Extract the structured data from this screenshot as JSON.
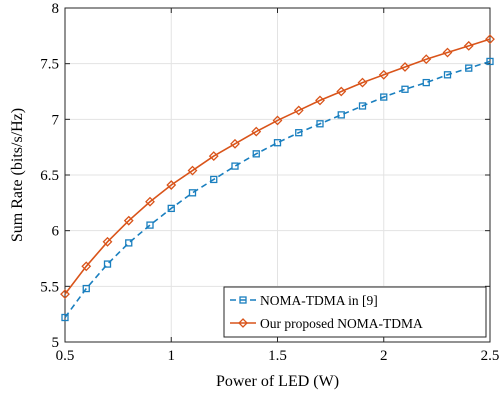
{
  "chart_data": {
    "type": "line",
    "xlabel": "Power of LED (W)",
    "ylabel": "Sum Rate (bits/s/Hz)",
    "xlim": [
      0.5,
      2.5
    ],
    "ylim": [
      5,
      8
    ],
    "x_ticks": [
      "0.5",
      "1",
      "1.5",
      "2",
      "2.5"
    ],
    "x_tick_values": [
      0.5,
      1,
      1.5,
      2,
      2.5
    ],
    "y_ticks": [
      "5",
      "5.5",
      "6",
      "6.5",
      "7",
      "7.5",
      "8"
    ],
    "y_tick_values": [
      5,
      5.5,
      6,
      6.5,
      7,
      7.5,
      8
    ],
    "grid": true,
    "legend_position": "bottom-right",
    "x": [
      0.5,
      0.6,
      0.7,
      0.8,
      0.9,
      1.0,
      1.1,
      1.2,
      1.3,
      1.4,
      1.5,
      1.6,
      1.7,
      1.8,
      1.9,
      2.0,
      2.1,
      2.2,
      2.3,
      2.4,
      2.5
    ],
    "series": [
      {
        "name": "NOMA-TDMA in [9]",
        "color": "#1a7fbf",
        "line_style": "dashed",
        "marker": "square",
        "values": [
          5.22,
          5.48,
          5.7,
          5.89,
          6.05,
          6.2,
          6.34,
          6.46,
          6.58,
          6.69,
          6.79,
          6.88,
          6.96,
          7.04,
          7.12,
          7.2,
          7.27,
          7.33,
          7.4,
          7.46,
          7.52
        ]
      },
      {
        "name": "Our proposed NOMA-TDMA",
        "color": "#d9541a",
        "line_style": "solid",
        "marker": "diamond",
        "values": [
          5.43,
          5.68,
          5.9,
          6.09,
          6.26,
          6.41,
          6.54,
          6.67,
          6.78,
          6.89,
          6.99,
          7.08,
          7.17,
          7.25,
          7.33,
          7.4,
          7.47,
          7.54,
          7.6,
          7.66,
          7.72
        ]
      }
    ]
  }
}
